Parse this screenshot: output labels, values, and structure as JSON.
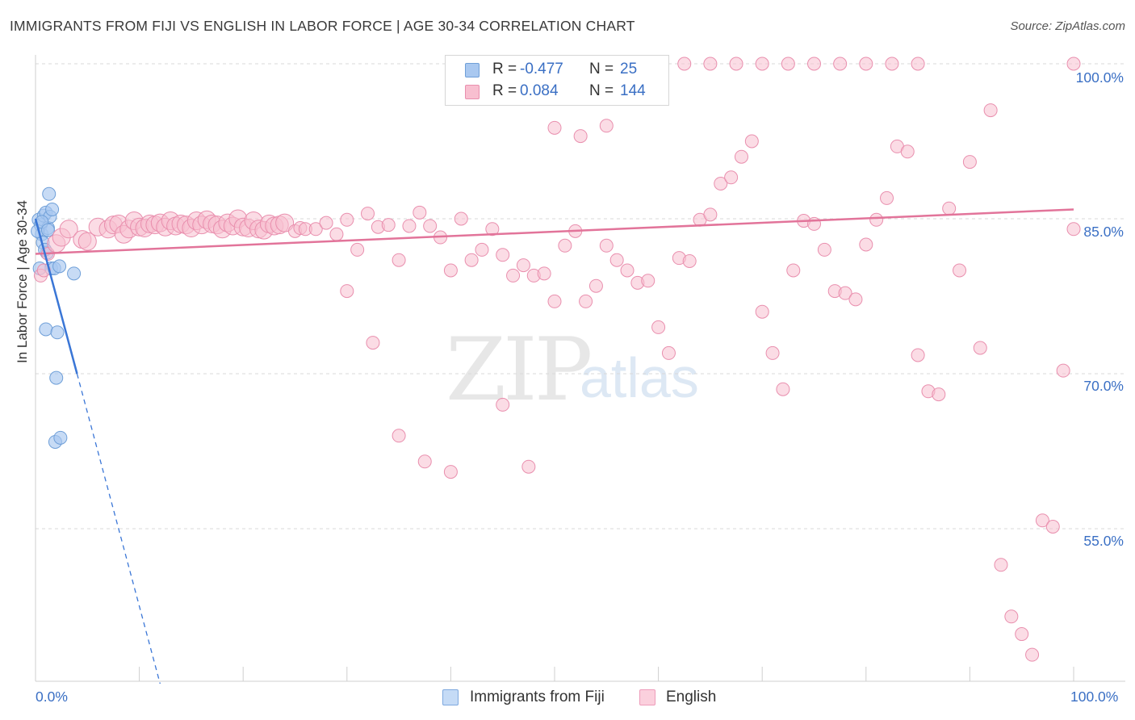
{
  "title": "IMMIGRANTS FROM FIJI VS ENGLISH IN LABOR FORCE | AGE 30-34 CORRELATION CHART",
  "source": "Source: ZipAtlas.com",
  "watermark": {
    "zip": "ZIP",
    "atlas": "atlas"
  },
  "legend": {
    "r_label": "R = ",
    "n_label": "N = ",
    "rows": [
      {
        "r": "-0.477",
        "n": "25",
        "color": "#a9c8f0",
        "border": "#6f9fd8"
      },
      {
        "r": "0.084",
        "n": "144",
        "color": "#f8bfd0",
        "border": "#e98fae"
      }
    ]
  },
  "bottom_legend": [
    "Immigrants from Fiji",
    "English"
  ],
  "chart_data": {
    "type": "scatter",
    "ylabel": "In Labor Force | Age 30-34",
    "xlabel": "",
    "x_ticks": [
      "0.0%",
      "100.0%"
    ],
    "y_ticks": [
      "100.0%",
      "85.0%",
      "70.0%",
      "55.0%"
    ],
    "xlim": [
      0,
      100
    ],
    "ylim": [
      40,
      100.5
    ],
    "grid": "horizontal dashed",
    "series": [
      {
        "name": "Immigrants from Fiji",
        "color": "#a9c8f0",
        "stroke": "#6f9fd8",
        "trend": {
          "x1": 0,
          "y1": 85.0,
          "x2": 4.0,
          "y2": 70.0,
          "dashed_to_x": 12,
          "color": "#3a76d6"
        },
        "points": [
          [
            0.3,
            84.9
          ],
          [
            0.5,
            84.4
          ],
          [
            0.6,
            83.5
          ],
          [
            0.8,
            85.3
          ],
          [
            1.0,
            85.6
          ],
          [
            1.2,
            84.1
          ],
          [
            1.3,
            87.4
          ],
          [
            1.4,
            85.2
          ],
          [
            1.6,
            85.9
          ],
          [
            1.5,
            80.2
          ],
          [
            1.8,
            80.2
          ],
          [
            2.3,
            80.4
          ],
          [
            0.7,
            82.7
          ],
          [
            1.1,
            81.7
          ],
          [
            1.0,
            74.3
          ],
          [
            2.1,
            74.0
          ],
          [
            2.0,
            69.6
          ],
          [
            3.7,
            79.7
          ],
          [
            1.9,
            63.4
          ],
          [
            2.4,
            63.8
          ],
          [
            0.4,
            80.2
          ],
          [
            0.9,
            82.0
          ],
          [
            0.2,
            83.8
          ],
          [
            0.6,
            84.7
          ],
          [
            1.2,
            83.9
          ]
        ]
      },
      {
        "name": "English",
        "color": "#f8bfd0",
        "stroke": "#e98fae",
        "trend": {
          "x1": 0,
          "y1": 81.6,
          "x2": 100,
          "y2": 85.9,
          "color": "#e2749a"
        },
        "points": [
          [
            0.5,
            79.5
          ],
          [
            0.8,
            80.0
          ],
          [
            1.2,
            81.6
          ],
          [
            2.0,
            82.6
          ],
          [
            2.5,
            83.2
          ],
          [
            3.2,
            84.0
          ],
          [
            4.5,
            83.0
          ],
          [
            5.0,
            82.8
          ],
          [
            6.0,
            84.2
          ],
          [
            7.0,
            84.0
          ],
          [
            7.5,
            84.4
          ],
          [
            8.0,
            84.5
          ],
          [
            8.5,
            83.5
          ],
          [
            9.0,
            84.0
          ],
          [
            9.5,
            84.8
          ],
          [
            10.0,
            84.2
          ],
          [
            10.5,
            84.1
          ],
          [
            11.0,
            84.5
          ],
          [
            11.5,
            84.4
          ],
          [
            12.0,
            84.6
          ],
          [
            12.5,
            84.2
          ],
          [
            13.0,
            84.8
          ],
          [
            13.5,
            84.3
          ],
          [
            14.0,
            84.5
          ],
          [
            14.5,
            84.4
          ],
          [
            15.0,
            84.1
          ],
          [
            15.5,
            84.8
          ],
          [
            16.0,
            84.4
          ],
          [
            16.5,
            84.9
          ],
          [
            17.0,
            84.5
          ],
          [
            17.5,
            84.4
          ],
          [
            18.0,
            84.0
          ],
          [
            18.5,
            84.6
          ],
          [
            19.0,
            84.3
          ],
          [
            19.5,
            85.0
          ],
          [
            20.0,
            84.2
          ],
          [
            20.5,
            84.1
          ],
          [
            21.0,
            84.8
          ],
          [
            21.5,
            84.0
          ],
          [
            22.0,
            83.9
          ],
          [
            22.5,
            84.5
          ],
          [
            23.0,
            84.3
          ],
          [
            23.5,
            84.4
          ],
          [
            24.0,
            84.6
          ],
          [
            25.0,
            83.8
          ],
          [
            25.5,
            84.1
          ],
          [
            26.0,
            84.0
          ],
          [
            27.0,
            84.0
          ],
          [
            28.0,
            84.6
          ],
          [
            29.0,
            83.5
          ],
          [
            30.0,
            84.9
          ],
          [
            31.0,
            82.0
          ],
          [
            32.0,
            85.5
          ],
          [
            33.0,
            84.2
          ],
          [
            34.0,
            84.4
          ],
          [
            35.0,
            81.0
          ],
          [
            36.0,
            84.3
          ],
          [
            37.0,
            85.6
          ],
          [
            38.0,
            84.3
          ],
          [
            39.0,
            83.2
          ],
          [
            40.0,
            80.0
          ],
          [
            41.0,
            85.0
          ],
          [
            42.0,
            81.0
          ],
          [
            43.0,
            82.0
          ],
          [
            44.0,
            84.0
          ],
          [
            45.0,
            81.5
          ],
          [
            46.0,
            79.5
          ],
          [
            47.0,
            80.5
          ],
          [
            48.0,
            79.5
          ],
          [
            49.0,
            79.7
          ],
          [
            50.0,
            77.0
          ],
          [
            51.0,
            82.4
          ],
          [
            52.0,
            83.8
          ],
          [
            53.0,
            77.0
          ],
          [
            54.0,
            78.5
          ],
          [
            55.0,
            82.4
          ],
          [
            56.0,
            81.0
          ],
          [
            57.0,
            80.0
          ],
          [
            58.0,
            78.8
          ],
          [
            59.0,
            79.0
          ],
          [
            60.0,
            74.5
          ],
          [
            61.0,
            72.0
          ],
          [
            62.0,
            81.2
          ],
          [
            63.0,
            80.9
          ],
          [
            64.0,
            84.9
          ],
          [
            65.0,
            85.4
          ],
          [
            66.0,
            88.4
          ],
          [
            67.0,
            89.0
          ],
          [
            68.0,
            91.0
          ],
          [
            69.0,
            92.5
          ],
          [
            70.0,
            76.0
          ],
          [
            71.0,
            72.0
          ],
          [
            72.0,
            68.5
          ],
          [
            73.0,
            80.0
          ],
          [
            74.0,
            84.8
          ],
          [
            75.0,
            84.5
          ],
          [
            76.0,
            82.0
          ],
          [
            77.0,
            78.0
          ],
          [
            78.0,
            77.8
          ],
          [
            79.0,
            77.2
          ],
          [
            80.0,
            82.5
          ],
          [
            81.0,
            84.9
          ],
          [
            82.0,
            87.0
          ],
          [
            83.0,
            92.0
          ],
          [
            84.0,
            91.5
          ],
          [
            85.0,
            71.8
          ],
          [
            86.0,
            68.3
          ],
          [
            87.0,
            68.0
          ],
          [
            88.0,
            86.0
          ],
          [
            89.0,
            80.0
          ],
          [
            90.0,
            90.5
          ],
          [
            91.0,
            72.5
          ],
          [
            92.0,
            95.5
          ],
          [
            93.0,
            51.5
          ],
          [
            94.0,
            46.5
          ],
          [
            95.0,
            44.8
          ],
          [
            96.0,
            42.8
          ],
          [
            97.0,
            55.8
          ],
          [
            98.0,
            55.2
          ],
          [
            99.0,
            70.3
          ],
          [
            100.0,
            84.0
          ],
          [
            30.0,
            78.0
          ],
          [
            32.5,
            73.0
          ],
          [
            35.0,
            64.0
          ],
          [
            37.5,
            61.5
          ],
          [
            40.0,
            60.5
          ],
          [
            45.0,
            67.0
          ],
          [
            47.5,
            61.0
          ],
          [
            50.0,
            93.8
          ],
          [
            52.5,
            93.0
          ],
          [
            55.0,
            94.0
          ],
          [
            57.5,
            99.0
          ],
          [
            60.0,
            100.0
          ],
          [
            62.5,
            100.0
          ],
          [
            65.0,
            100.0
          ],
          [
            67.5,
            100.0
          ],
          [
            70.0,
            100.0
          ],
          [
            72.5,
            100.0
          ],
          [
            75.0,
            100.0
          ],
          [
            77.5,
            100.0
          ],
          [
            80.0,
            100.0
          ],
          [
            82.5,
            100.0
          ],
          [
            85.0,
            100.0
          ],
          [
            100.0,
            100.0
          ]
        ]
      }
    ]
  }
}
